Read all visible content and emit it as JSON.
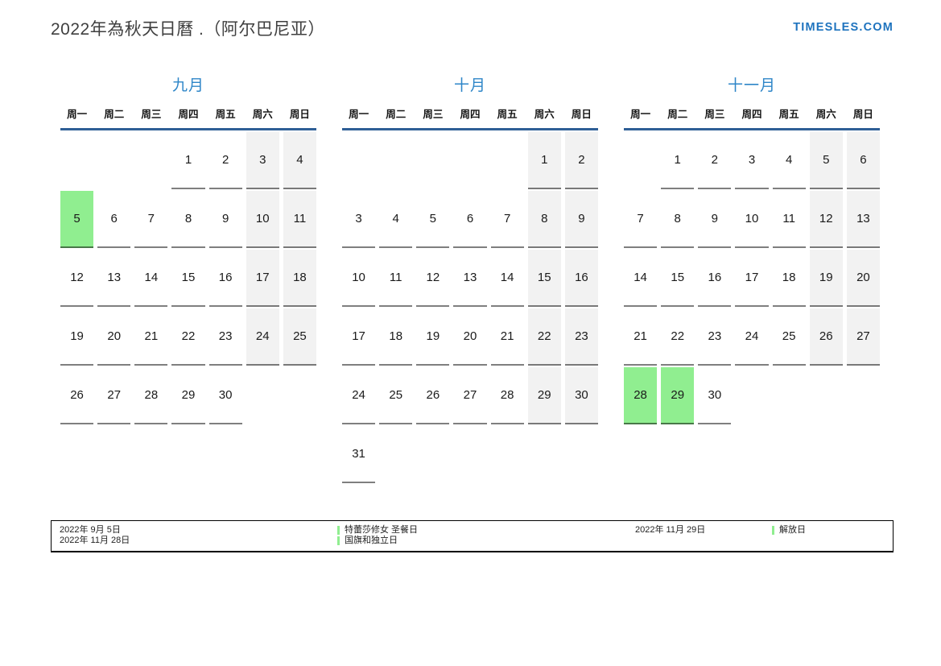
{
  "header": {
    "title": "2022年為秋天日曆 .（阿尔巴尼亚）",
    "logo": "TIMESLES.COM"
  },
  "colors": {
    "month_title_blue": "#2E86C8",
    "rule_blue": "#2F5F96",
    "logo_blue": "#1E73BE",
    "highlight_green": "#90EE90",
    "weekend_gray": "#F2F2F2",
    "cell_border_gray": "#808080"
  },
  "calendar": {
    "weekdays": [
      "周一",
      "周二",
      "周三",
      "周四",
      "周五",
      "周六",
      "周日"
    ],
    "months": [
      {
        "id": "september",
        "name": "九月",
        "weeks": [
          [
            "",
            "",
            "",
            "1",
            "2",
            "3",
            "4"
          ],
          [
            "5",
            "6",
            "7",
            "8",
            "9",
            "10",
            "11"
          ],
          [
            "12",
            "13",
            "14",
            "15",
            "16",
            "17",
            "18"
          ],
          [
            "19",
            "20",
            "21",
            "22",
            "23",
            "24",
            "25"
          ],
          [
            "26",
            "27",
            "28",
            "29",
            "30",
            "",
            ""
          ]
        ],
        "highlighted_days": [
          "5"
        ]
      },
      {
        "id": "october",
        "name": "十月",
        "weeks": [
          [
            "",
            "",
            "",
            "",
            "",
            "1",
            "2"
          ],
          [
            "3",
            "4",
            "5",
            "6",
            "7",
            "8",
            "9"
          ],
          [
            "10",
            "11",
            "12",
            "13",
            "14",
            "15",
            "16"
          ],
          [
            "17",
            "18",
            "19",
            "20",
            "21",
            "22",
            "23"
          ],
          [
            "24",
            "25",
            "26",
            "27",
            "28",
            "29",
            "30"
          ],
          [
            "31",
            "",
            "",
            "",
            "",
            "",
            ""
          ]
        ],
        "highlighted_days": []
      },
      {
        "id": "november",
        "name": "十一月",
        "weeks": [
          [
            "",
            "1",
            "2",
            "3",
            "4",
            "5",
            "6"
          ],
          [
            "7",
            "8",
            "9",
            "10",
            "11",
            "12",
            "13"
          ],
          [
            "14",
            "15",
            "16",
            "17",
            "18",
            "19",
            "20"
          ],
          [
            "21",
            "22",
            "23",
            "24",
            "25",
            "26",
            "27"
          ],
          [
            "28",
            "29",
            "30",
            "",
            "",
            "",
            ""
          ]
        ],
        "highlighted_days": [
          "28",
          "29"
        ]
      }
    ]
  },
  "legend": {
    "groups": [
      {
        "dates": [
          "2022年 9月 5日",
          "2022年 11月 28日"
        ],
        "holidays": [
          "特蕾莎修女 圣餐日",
          "国旗和独立日"
        ]
      },
      {
        "dates": [
          "2022年 11月 29日"
        ],
        "holidays": [
          "解放日"
        ]
      }
    ]
  }
}
